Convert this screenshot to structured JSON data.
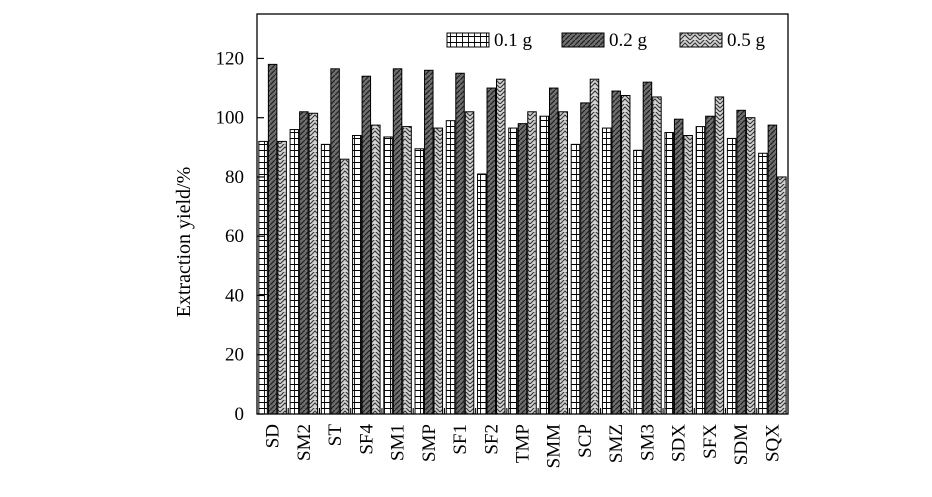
{
  "chart_data": {
    "type": "bar",
    "title": "",
    "xlabel": "",
    "ylabel": "Extraction yield/%",
    "ylim": [
      0,
      135
    ],
    "yticks": [
      0,
      20,
      40,
      60,
      80,
      100,
      120
    ],
    "grid": false,
    "legend_position": "top-right",
    "categories": [
      "SD",
      "SM2",
      "ST",
      "SF4",
      "SM1",
      "SMP",
      "SF1",
      "SF2",
      "TMP",
      "SMM",
      "SCP",
      "SMZ",
      "SM3",
      "SDX",
      "SFX",
      "SDM",
      "SQX"
    ],
    "series": [
      {
        "name": "0.1 g",
        "pattern": "grid",
        "color": "#ffffff",
        "values": [
          92,
          96,
          91,
          94,
          93.5,
          89.5,
          99,
          81,
          96.5,
          100.5,
          91,
          96.5,
          89,
          95,
          97,
          93,
          88
        ]
      },
      {
        "name": "0.2 g",
        "pattern": "diagonal-dark",
        "color": "#777777",
        "values": [
          118,
          102,
          116.5,
          114,
          116.5,
          116,
          115,
          110,
          98,
          110,
          105,
          109,
          112,
          99.5,
          100.5,
          102.5,
          97.5
        ]
      },
      {
        "name": "0.5 g",
        "pattern": "herringbone-light",
        "color": "#cccccc",
        "values": [
          92,
          101.5,
          86,
          97.5,
          97,
          96.5,
          102,
          113,
          102,
          102,
          113,
          107.5,
          107,
          94,
          107,
          100,
          80
        ]
      }
    ]
  }
}
